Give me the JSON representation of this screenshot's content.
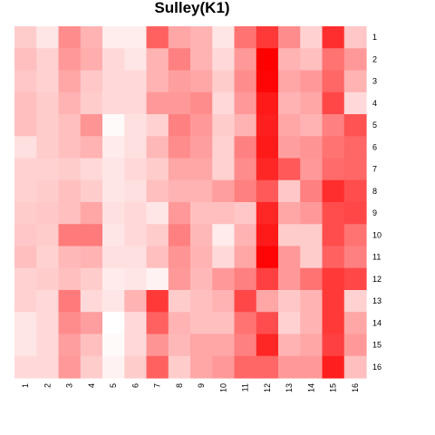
{
  "chart_data": {
    "type": "heatmap",
    "title": "Sulley(K1)",
    "row_labels": [
      "1",
      "2",
      "3",
      "4",
      "5",
      "6",
      "7",
      "8",
      "9",
      "10",
      "11",
      "12",
      "13",
      "14",
      "15",
      "16"
    ],
    "col_labels": [
      "1",
      "2",
      "3",
      "4",
      "5",
      "6",
      "7",
      "8",
      "9",
      "10",
      "11",
      "12",
      "13",
      "14",
      "15",
      "16"
    ],
    "color_low": "#ffffff",
    "color_high": "#ff0000",
    "value_range": [
      0,
      1
    ],
    "values": [
      [
        0.2,
        0.1,
        0.45,
        0.3,
        0.07,
        0.07,
        0.62,
        0.35,
        0.3,
        0.1,
        0.55,
        0.78,
        0.45,
        0.18,
        0.82,
        0.22
      ],
      [
        0.25,
        0.18,
        0.4,
        0.32,
        0.15,
        0.1,
        0.3,
        0.5,
        0.3,
        0.15,
        0.4,
        1.0,
        0.3,
        0.25,
        0.55,
        0.4
      ],
      [
        0.22,
        0.18,
        0.35,
        0.22,
        0.15,
        0.15,
        0.3,
        0.38,
        0.35,
        0.2,
        0.45,
        0.98,
        0.35,
        0.4,
        0.6,
        0.3
      ],
      [
        0.25,
        0.2,
        0.3,
        0.2,
        0.15,
        0.15,
        0.4,
        0.4,
        0.45,
        0.15,
        0.4,
        0.9,
        0.3,
        0.35,
        0.72,
        0.15
      ],
      [
        0.25,
        0.2,
        0.25,
        0.42,
        0.02,
        0.12,
        0.18,
        0.5,
        0.4,
        0.2,
        0.3,
        0.88,
        0.35,
        0.3,
        0.5,
        0.68
      ],
      [
        0.12,
        0.2,
        0.25,
        0.3,
        0.08,
        0.12,
        0.28,
        0.45,
        0.38,
        0.18,
        0.5,
        0.9,
        0.38,
        0.42,
        0.55,
        0.6
      ],
      [
        0.18,
        0.18,
        0.2,
        0.15,
        0.1,
        0.15,
        0.2,
        0.35,
        0.35,
        0.18,
        0.45,
        0.85,
        0.65,
        0.4,
        0.58,
        0.6
      ],
      [
        0.18,
        0.2,
        0.25,
        0.2,
        0.1,
        0.12,
        0.25,
        0.3,
        0.3,
        0.38,
        0.5,
        0.65,
        0.22,
        0.5,
        0.82,
        0.7
      ],
      [
        0.2,
        0.22,
        0.25,
        0.35,
        0.12,
        0.15,
        0.1,
        0.4,
        0.25,
        0.25,
        0.22,
        0.85,
        0.35,
        0.4,
        0.7,
        0.72
      ],
      [
        0.22,
        0.2,
        0.52,
        0.52,
        0.1,
        0.15,
        0.2,
        0.5,
        0.28,
        0.08,
        0.3,
        0.9,
        0.2,
        0.2,
        0.7,
        0.55
      ],
      [
        0.25,
        0.18,
        0.28,
        0.3,
        0.12,
        0.12,
        0.25,
        0.42,
        0.3,
        0.15,
        0.35,
        0.98,
        0.4,
        0.2,
        0.62,
        0.5
      ],
      [
        0.18,
        0.2,
        0.25,
        0.2,
        0.08,
        0.1,
        0.05,
        0.4,
        0.28,
        0.4,
        0.5,
        0.75,
        0.4,
        0.55,
        0.78,
        0.72
      ],
      [
        0.18,
        0.15,
        0.52,
        0.15,
        0.1,
        0.3,
        0.78,
        0.2,
        0.25,
        0.3,
        0.72,
        0.35,
        0.22,
        0.3,
        0.78,
        0.18
      ],
      [
        0.1,
        0.15,
        0.45,
        0.38,
        0.0,
        0.15,
        0.62,
        0.3,
        0.25,
        0.25,
        0.55,
        0.7,
        0.18,
        0.3,
        0.78,
        0.35
      ],
      [
        0.1,
        0.15,
        0.38,
        0.25,
        0.02,
        0.15,
        0.42,
        0.28,
        0.35,
        0.35,
        0.5,
        0.85,
        0.3,
        0.35,
        0.75,
        0.4
      ],
      [
        0.15,
        0.15,
        0.4,
        0.2,
        0.05,
        0.2,
        0.62,
        0.2,
        0.35,
        0.4,
        0.6,
        0.6,
        0.4,
        0.4,
        0.88,
        0.25
      ]
    ]
  }
}
